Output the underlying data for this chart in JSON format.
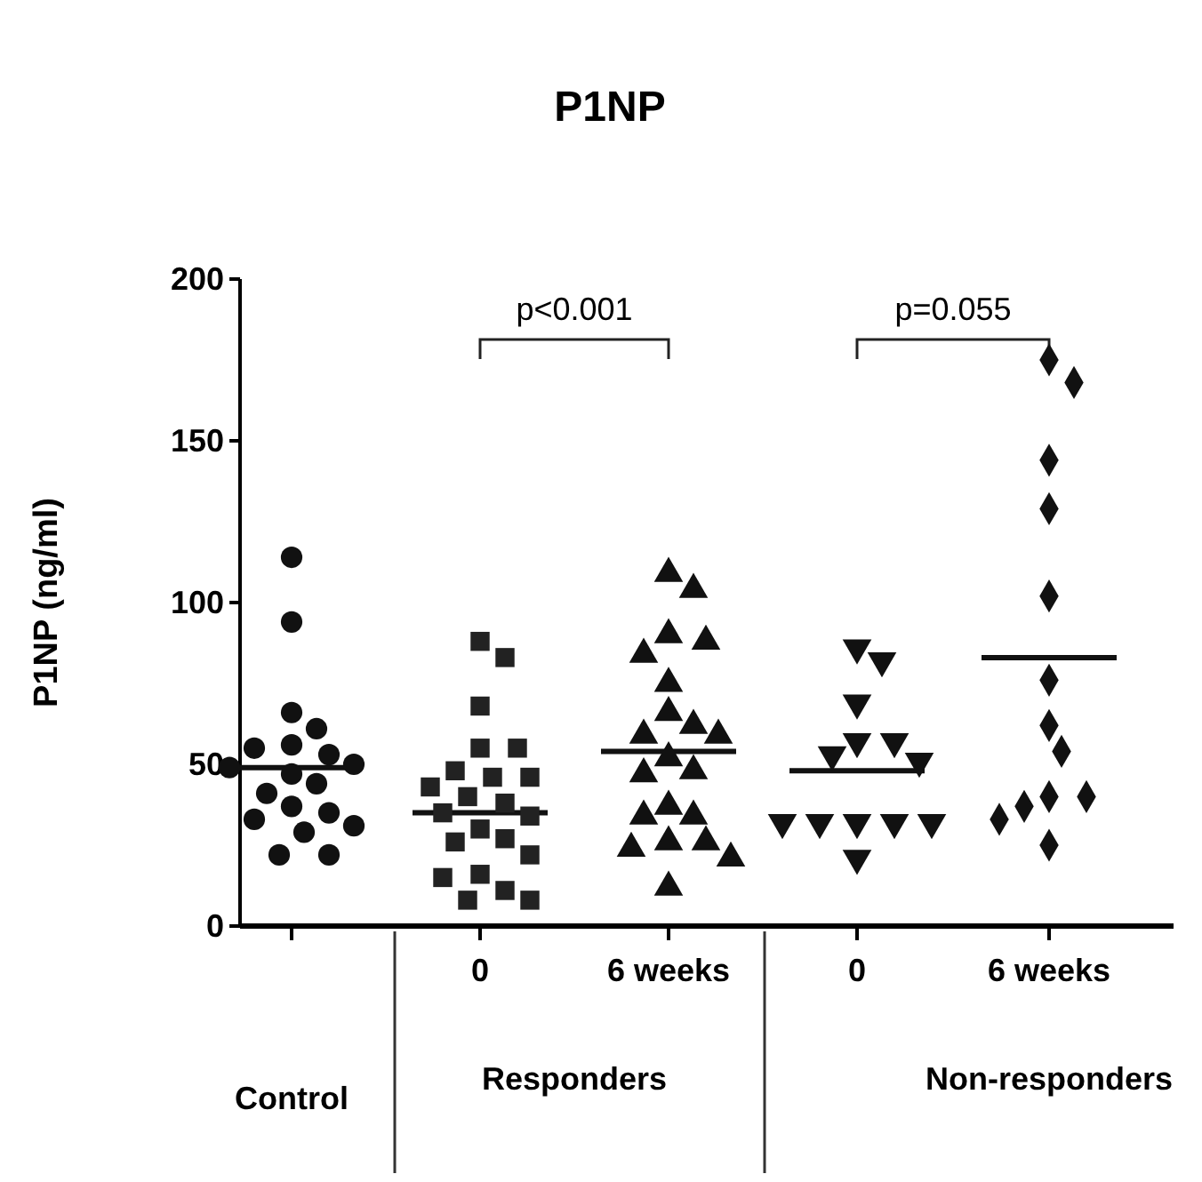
{
  "chart_data": [
    {
      "type": "scatter",
      "ylabel": "P1NP (ng/ml)",
      "categories": [
        "Control"
      ],
      "ylim": [
        0,
        200
      ],
      "yticks": [
        0,
        50,
        100,
        150,
        200
      ],
      "grid": false,
      "series": [
        {
          "marker": "circle",
          "color": "#111111",
          "x": [
            "Control",
            "Control",
            "Control",
            "Control",
            "Control",
            "Control",
            "Control",
            "Control",
            "Control",
            "Control",
            "Control",
            "Control",
            "Control",
            "Control",
            "Control",
            "Control",
            "Control",
            "Control",
            "Control"
          ],
          "values": [
            114,
            94,
            66,
            61,
            56,
            55,
            53,
            50,
            49,
            47,
            44,
            41,
            37,
            35,
            33,
            31,
            29,
            22,
            22
          ]
        }
      ],
      "ref_lines": [
        {
          "axis": "y",
          "value": 49,
          "color": "#111111"
        }
      ]
    },
    {
      "type": "scatter",
      "xlabel": "Responders",
      "categories": [
        "0"
      ],
      "ylim": [
        0,
        200
      ],
      "yticks": [
        0,
        50,
        100,
        150,
        200
      ],
      "tick_labels": "x",
      "grid": false,
      "series": [
        {
          "marker": "square",
          "color": "#222222",
          "x": [
            "0",
            "0",
            "0",
            "0",
            "0",
            "0",
            "0",
            "0",
            "0",
            "0",
            "0",
            "0",
            "0",
            "0",
            "0",
            "0",
            "0",
            "0",
            "0",
            "0",
            "0",
            "0"
          ],
          "values": [
            88,
            83,
            68,
            55,
            55,
            48,
            46,
            46,
            43,
            40,
            38,
            35,
            34,
            30,
            27,
            26,
            22,
            16,
            15,
            11,
            8,
            8
          ]
        }
      ],
      "ref_lines": [
        {
          "axis": "y",
          "value": 35,
          "color": "#111111"
        }
      ],
      "annotations": [
        "p<0.001"
      ]
    },
    {
      "type": "scatter",
      "title": "P1NP",
      "categories": [
        "6 weeks"
      ],
      "ylim": [
        0,
        200
      ],
      "yticks": [
        0,
        50,
        100,
        150,
        200
      ],
      "tick_labels": "x",
      "grid": false,
      "series": [
        {
          "marker": "triangle",
          "color": "#111111",
          "x": [
            "6 weeks",
            "6 weeks",
            "6 weeks",
            "6 weeks",
            "6 weeks",
            "6 weeks",
            "6 weeks",
            "6 weeks",
            "6 weeks",
            "6 weeks",
            "6 weeks",
            "6 weeks",
            "6 weeks",
            "6 weeks",
            "6 weeks",
            "6 weeks",
            "6 weeks",
            "6 weeks",
            "6 weeks",
            "6 weeks",
            "6 weeks"
          ],
          "values": [
            109,
            104,
            90,
            88,
            84,
            75,
            66,
            62,
            59,
            59,
            52,
            48,
            47,
            37,
            34,
            34,
            26,
            26,
            24,
            21,
            12
          ]
        }
      ],
      "ref_lines": [
        {
          "axis": "y",
          "value": 54,
          "color": "#111111"
        }
      ]
    },
    {
      "type": "scatter",
      "categories": [
        "0"
      ],
      "ylim": [
        0,
        200
      ],
      "yticks": [
        0,
        50,
        100,
        150,
        200
      ],
      "tick_labels": "x",
      "grid": false,
      "series": [
        {
          "marker": "triangle-down",
          "color": "#111111",
          "x": [
            "0",
            "0",
            "0",
            "0",
            "0",
            "0",
            "0",
            "0",
            "0",
            "0",
            "0",
            "0",
            "0"
          ],
          "values": [
            86,
            82,
            69,
            57,
            57,
            53,
            51,
            32,
            32,
            32,
            32,
            32,
            21
          ]
        }
      ],
      "ref_lines": [
        {
          "axis": "y",
          "value": 48,
          "color": "#111111"
        }
      ],
      "annotations": [
        "p=0.055"
      ]
    },
    {
      "type": "scatter",
      "xlabel": "Non-responders",
      "categories": [
        "6 weeks"
      ],
      "ylim": [
        0,
        200
      ],
      "yticks": [
        0,
        50,
        100,
        150,
        200
      ],
      "tick_labels": "x",
      "grid": false,
      "series": [
        {
          "marker": "diamond",
          "color": "#111111",
          "x": [
            "6 weeks",
            "6 weeks",
            "6 weeks",
            "6 weeks",
            "6 weeks",
            "6 weeks",
            "6 weeks",
            "6 weeks",
            "6 weeks",
            "6 weeks",
            "6 weeks",
            "6 weeks",
            "6 weeks"
          ],
          "values": [
            175,
            168,
            144,
            129,
            102,
            76,
            62,
            54,
            40,
            40,
            37,
            33,
            25
          ]
        }
      ],
      "ref_lines": [
        {
          "axis": "y",
          "value": 83,
          "color": "#111111"
        }
      ]
    }
  ]
}
